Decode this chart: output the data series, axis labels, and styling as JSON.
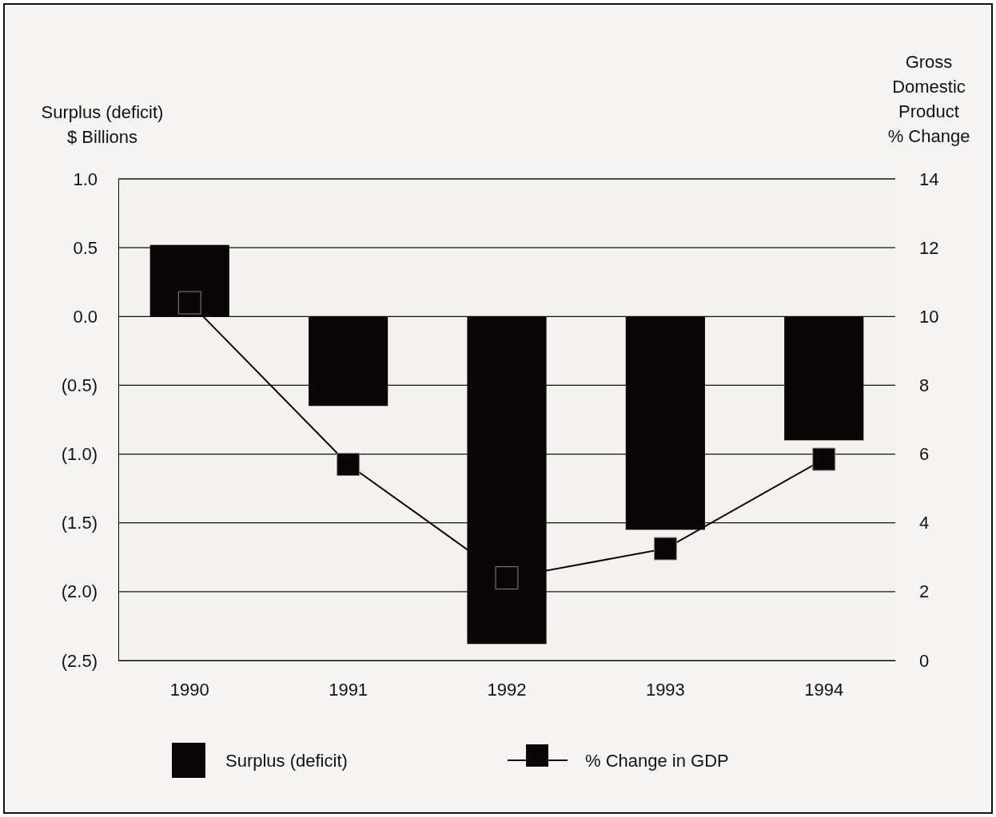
{
  "chart_data": {
    "type": "bar",
    "ylabel": "Surplus (deficit)\n$ Billions",
    "y2label": "Gross\nDomestic\nProduct\n% Change",
    "categories": [
      "1990",
      "1991",
      "1992",
      "1993",
      "1994"
    ],
    "series": [
      {
        "name": "Surplus (deficit)",
        "color": "#0a0506",
        "values": [
          0.52,
          -0.65,
          -2.38,
          -1.55,
          -0.9
        ]
      },
      {
        "name": "% Change in GDP",
        "type": "line",
        "axis": "y2",
        "color": "#0a0506",
        "values": [
          10.4,
          5.7,
          2.4,
          3.25,
          5.85
        ]
      }
    ],
    "ylim": [
      -2.5,
      1.0
    ],
    "yticks": [
      {
        "value": 1.0,
        "label": "1.0"
      },
      {
        "value": 0.5,
        "label": "0.5"
      },
      {
        "value": 0,
        "label": "0.0"
      },
      {
        "value": -0.5,
        "label": "(0.5)"
      },
      {
        "value": -1.0,
        "label": "(1.0)"
      },
      {
        "value": -1.5,
        "label": "(1.5)"
      },
      {
        "value": -2.0,
        "label": "(2.0)"
      },
      {
        "value": -2.5,
        "label": "(2.5)"
      }
    ],
    "y2lim": [
      0,
      14
    ],
    "y2ticks": [
      0,
      2,
      4,
      6,
      8,
      10,
      12,
      14
    ],
    "grid": "y",
    "legend": "bottom",
    "marker": "square",
    "line_style": "solid"
  }
}
